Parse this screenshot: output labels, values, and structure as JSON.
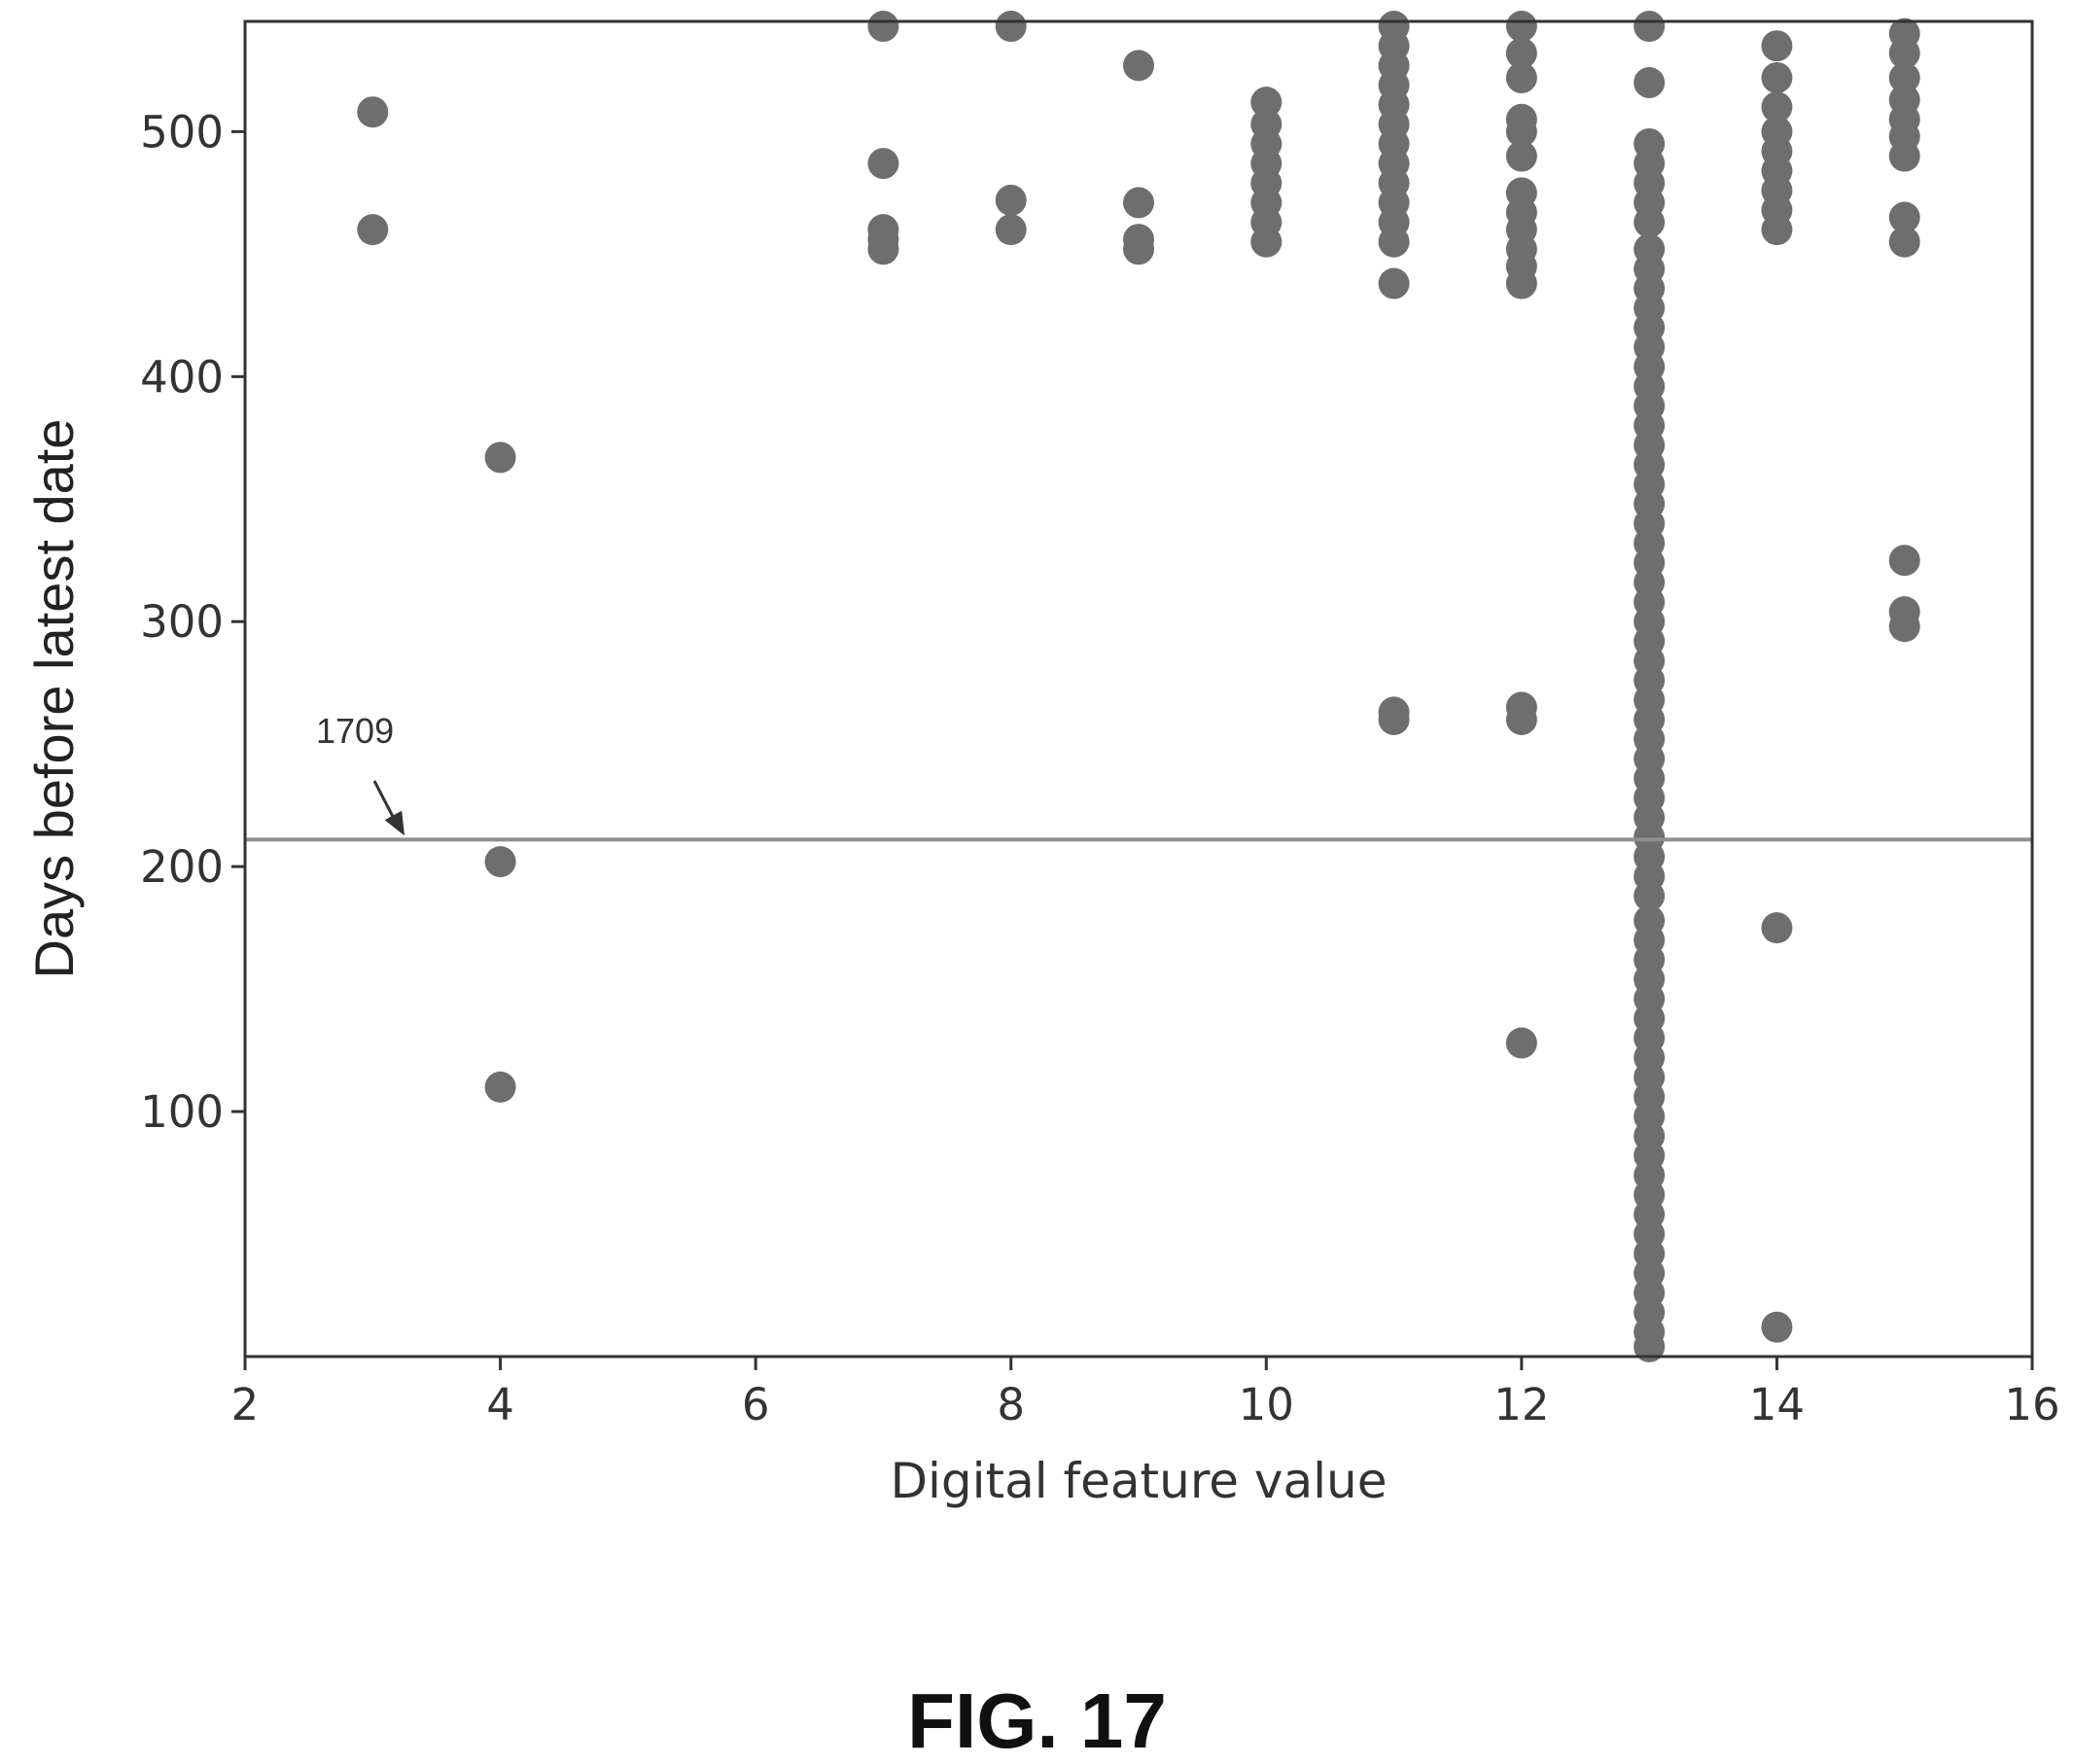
{
  "figure_caption": "FIG. 17",
  "chart_data": {
    "type": "scatter",
    "title": "",
    "xlabel": "Digital feature value",
    "ylabel": "Days before latest date",
    "xlim": [
      2,
      16
    ],
    "ylim": [
      0,
      545
    ],
    "x_ticks": [
      "2",
      "4",
      "6",
      "8",
      "10",
      "12",
      "14",
      "16"
    ],
    "y_ticks": [
      "100",
      "200",
      "300",
      "400",
      "500"
    ],
    "marker_color": "#6e6e6e",
    "line_color": "#909090",
    "grid": false,
    "threshold": {
      "y": 211,
      "label": "1709"
    },
    "points": [
      {
        "x": 3,
        "y": 508
      },
      {
        "x": 3,
        "y": 460
      },
      {
        "x": 4,
        "y": 367
      },
      {
        "x": 4,
        "y": 202
      },
      {
        "x": 4,
        "y": 110
      },
      {
        "x": 7,
        "y": 543
      },
      {
        "x": 7,
        "y": 487
      },
      {
        "x": 7,
        "y": 460
      },
      {
        "x": 7,
        "y": 456
      },
      {
        "x": 7,
        "y": 452
      },
      {
        "x": 8,
        "y": 543
      },
      {
        "x": 8,
        "y": 472
      },
      {
        "x": 8,
        "y": 460
      },
      {
        "x": 9,
        "y": 527
      },
      {
        "x": 9,
        "y": 471
      },
      {
        "x": 9,
        "y": 456
      },
      {
        "x": 9,
        "y": 452
      },
      {
        "x": 10,
        "y": 512
      },
      {
        "x": 10,
        "y": 503
      },
      {
        "x": 10,
        "y": 495
      },
      {
        "x": 10,
        "y": 487
      },
      {
        "x": 10,
        "y": 479
      },
      {
        "x": 10,
        "y": 471
      },
      {
        "x": 10,
        "y": 463
      },
      {
        "x": 10,
        "y": 455
      },
      {
        "x": 11,
        "y": 543
      },
      {
        "x": 11,
        "y": 535
      },
      {
        "x": 11,
        "y": 527
      },
      {
        "x": 11,
        "y": 519
      },
      {
        "x": 11,
        "y": 511
      },
      {
        "x": 11,
        "y": 503
      },
      {
        "x": 11,
        "y": 495
      },
      {
        "x": 11,
        "y": 487
      },
      {
        "x": 11,
        "y": 479
      },
      {
        "x": 11,
        "y": 471
      },
      {
        "x": 11,
        "y": 463
      },
      {
        "x": 11,
        "y": 455
      },
      {
        "x": 11,
        "y": 438
      },
      {
        "x": 11,
        "y": 263
      },
      {
        "x": 11,
        "y": 260
      },
      {
        "x": 12,
        "y": 543
      },
      {
        "x": 12,
        "y": 532
      },
      {
        "x": 12,
        "y": 522
      },
      {
        "x": 12,
        "y": 505
      },
      {
        "x": 12,
        "y": 500
      },
      {
        "x": 12,
        "y": 490
      },
      {
        "x": 12,
        "y": 475
      },
      {
        "x": 12,
        "y": 467
      },
      {
        "x": 12,
        "y": 460
      },
      {
        "x": 12,
        "y": 452
      },
      {
        "x": 12,
        "y": 445
      },
      {
        "x": 12,
        "y": 438
      },
      {
        "x": 12,
        "y": 265
      },
      {
        "x": 12,
        "y": 260
      },
      {
        "x": 12,
        "y": 128
      },
      {
        "x": 13,
        "y": 543
      },
      {
        "x": 13,
        "y": 520
      },
      {
        "x": 13,
        "y": 495
      },
      {
        "x": 13,
        "y": 487
      },
      {
        "x": 13,
        "y": 479
      },
      {
        "x": 13,
        "y": 471
      },
      {
        "x": 13,
        "y": 463
      },
      {
        "x": 13,
        "y": 452
      },
      {
        "x": 13,
        "y": 444
      },
      {
        "x": 13,
        "y": 436
      },
      {
        "x": 13,
        "y": 428
      },
      {
        "x": 13,
        "y": 420
      },
      {
        "x": 13,
        "y": 412
      },
      {
        "x": 13,
        "y": 404
      },
      {
        "x": 13,
        "y": 396
      },
      {
        "x": 13,
        "y": 388
      },
      {
        "x": 13,
        "y": 380
      },
      {
        "x": 13,
        "y": 372
      },
      {
        "x": 13,
        "y": 364
      },
      {
        "x": 13,
        "y": 356
      },
      {
        "x": 13,
        "y": 348
      },
      {
        "x": 13,
        "y": 340
      },
      {
        "x": 13,
        "y": 332
      },
      {
        "x": 13,
        "y": 324
      },
      {
        "x": 13,
        "y": 316
      },
      {
        "x": 13,
        "y": 308
      },
      {
        "x": 13,
        "y": 300
      },
      {
        "x": 13,
        "y": 292
      },
      {
        "x": 13,
        "y": 284
      },
      {
        "x": 13,
        "y": 276
      },
      {
        "x": 13,
        "y": 268
      },
      {
        "x": 13,
        "y": 260
      },
      {
        "x": 13,
        "y": 252
      },
      {
        "x": 13,
        "y": 244
      },
      {
        "x": 13,
        "y": 236
      },
      {
        "x": 13,
        "y": 228
      },
      {
        "x": 13,
        "y": 220
      },
      {
        "x": 13,
        "y": 212
      },
      {
        "x": 13,
        "y": 204
      },
      {
        "x": 13,
        "y": 196
      },
      {
        "x": 13,
        "y": 188
      },
      {
        "x": 13,
        "y": 178
      },
      {
        "x": 13,
        "y": 170
      },
      {
        "x": 13,
        "y": 162
      },
      {
        "x": 13,
        "y": 154
      },
      {
        "x": 13,
        "y": 146
      },
      {
        "x": 13,
        "y": 138
      },
      {
        "x": 13,
        "y": 130
      },
      {
        "x": 13,
        "y": 122
      },
      {
        "x": 13,
        "y": 114
      },
      {
        "x": 13,
        "y": 106
      },
      {
        "x": 13,
        "y": 98
      },
      {
        "x": 13,
        "y": 90
      },
      {
        "x": 13,
        "y": 82
      },
      {
        "x": 13,
        "y": 74
      },
      {
        "x": 13,
        "y": 66
      },
      {
        "x": 13,
        "y": 58
      },
      {
        "x": 13,
        "y": 50
      },
      {
        "x": 13,
        "y": 42
      },
      {
        "x": 13,
        "y": 34
      },
      {
        "x": 13,
        "y": 26
      },
      {
        "x": 13,
        "y": 18
      },
      {
        "x": 13,
        "y": 10
      },
      {
        "x": 13,
        "y": 4
      },
      {
        "x": 14,
        "y": 535
      },
      {
        "x": 14,
        "y": 522
      },
      {
        "x": 14,
        "y": 510
      },
      {
        "x": 14,
        "y": 500
      },
      {
        "x": 14,
        "y": 492
      },
      {
        "x": 14,
        "y": 484
      },
      {
        "x": 14,
        "y": 476
      },
      {
        "x": 14,
        "y": 468
      },
      {
        "x": 14,
        "y": 460
      },
      {
        "x": 14,
        "y": 175
      },
      {
        "x": 14,
        "y": 12
      },
      {
        "x": 15,
        "y": 540
      },
      {
        "x": 15,
        "y": 532
      },
      {
        "x": 15,
        "y": 522
      },
      {
        "x": 15,
        "y": 513
      },
      {
        "x": 15,
        "y": 505
      },
      {
        "x": 15,
        "y": 498
      },
      {
        "x": 15,
        "y": 490
      },
      {
        "x": 15,
        "y": 465
      },
      {
        "x": 15,
        "y": 455
      },
      {
        "x": 15,
        "y": 325
      },
      {
        "x": 15,
        "y": 304
      },
      {
        "x": 15,
        "y": 298
      }
    ]
  }
}
